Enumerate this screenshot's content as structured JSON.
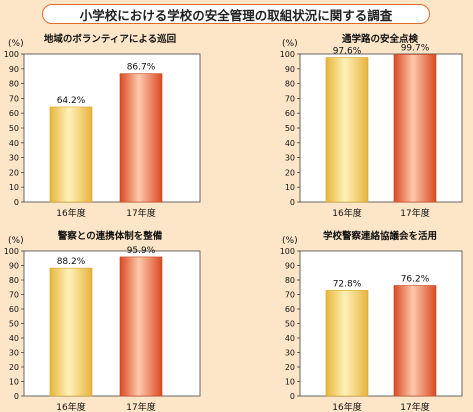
{
  "title": "小学校における学校の安全管理の取組状況に関する調査",
  "colors": {
    "background": "#fde6c8",
    "bar_2016": "#f0c24a",
    "bar_2017": "#e55b2b",
    "title_border": "#e06a2a"
  },
  "chart_data": [
    {
      "type": "bar",
      "title": "地域のボランティアによる巡回",
      "ylabel": "(%)",
      "ylim": [
        0,
        100
      ],
      "yticks": [
        0,
        10,
        20,
        30,
        40,
        50,
        60,
        70,
        80,
        90,
        100
      ],
      "categories": [
        "16年度",
        "17年度"
      ],
      "values": [
        64.2,
        86.7
      ],
      "value_labels": [
        "64.2%",
        "86.7%"
      ]
    },
    {
      "type": "bar",
      "title": "通学路の安全点検",
      "ylabel": "(%)",
      "ylim": [
        0,
        100
      ],
      "yticks": [
        0,
        10,
        20,
        30,
        40,
        50,
        60,
        70,
        80,
        90,
        100
      ],
      "categories": [
        "16年度",
        "17年度"
      ],
      "values": [
        97.6,
        99.7
      ],
      "value_labels": [
        "97.6%",
        "99.7%"
      ]
    },
    {
      "type": "bar",
      "title": "警察との連携体制を整備",
      "ylabel": "(%)",
      "ylim": [
        0,
        100
      ],
      "yticks": [
        0,
        10,
        20,
        30,
        40,
        50,
        60,
        70,
        80,
        90,
        100
      ],
      "categories": [
        "16年度",
        "17年度"
      ],
      "values": [
        88.2,
        95.9
      ],
      "value_labels": [
        "88.2%",
        "95.9%"
      ]
    },
    {
      "type": "bar",
      "title": "学校警察連絡協議会を活用",
      "ylabel": "(%)",
      "ylim": [
        0,
        100
      ],
      "yticks": [
        0,
        10,
        20,
        30,
        40,
        50,
        60,
        70,
        80,
        90,
        100
      ],
      "categories": [
        "16年度",
        "17年度"
      ],
      "values": [
        72.8,
        76.2
      ],
      "value_labels": [
        "72.8%",
        "76.2%"
      ]
    }
  ]
}
